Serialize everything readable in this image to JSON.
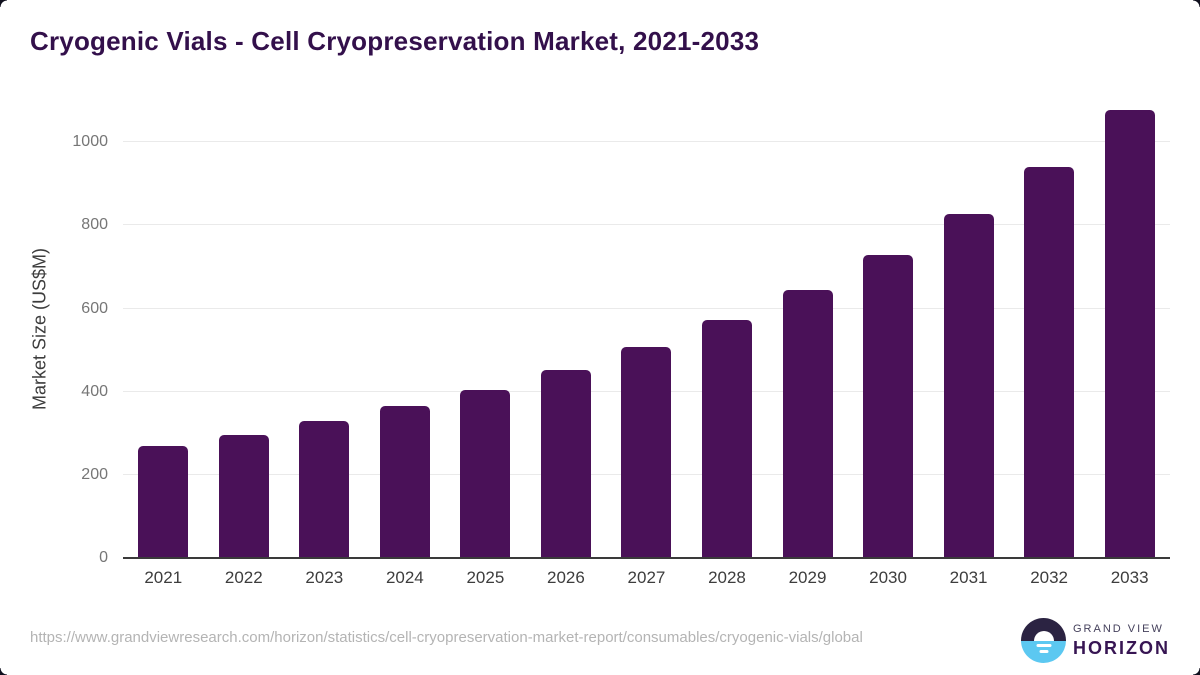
{
  "title": "Cryogenic Vials - Cell Cryopreservation Market, 2021-2033",
  "chart_data": {
    "type": "bar",
    "title": "Cryogenic Vials - Cell Cryopreservation Market, 2021-2033",
    "categories": [
      "2021",
      "2022",
      "2023",
      "2024",
      "2025",
      "2026",
      "2027",
      "2028",
      "2029",
      "2030",
      "2031",
      "2032",
      "2033"
    ],
    "values": [
      270,
      296,
      329,
      365,
      405,
      453,
      507,
      572,
      644,
      728,
      827,
      941,
      1077
    ],
    "xlabel": "",
    "ylabel": "Market Size (US$M)",
    "yticks": [
      0,
      200,
      400,
      600,
      800,
      1000
    ],
    "ylim": [
      0,
      1100
    ],
    "grid": "horizontal",
    "legend": "none",
    "bar_color": "#4a1158",
    "title_color": "#33104b"
  },
  "footer": {
    "source_url": "https://www.grandviewresearch.com/horizon/statistics/cell-cryopreservation-market-report/consumables/cryogenic-vials/global",
    "logo": {
      "top_text": "GRAND VIEW",
      "bottom_text": "HORIZON"
    }
  }
}
